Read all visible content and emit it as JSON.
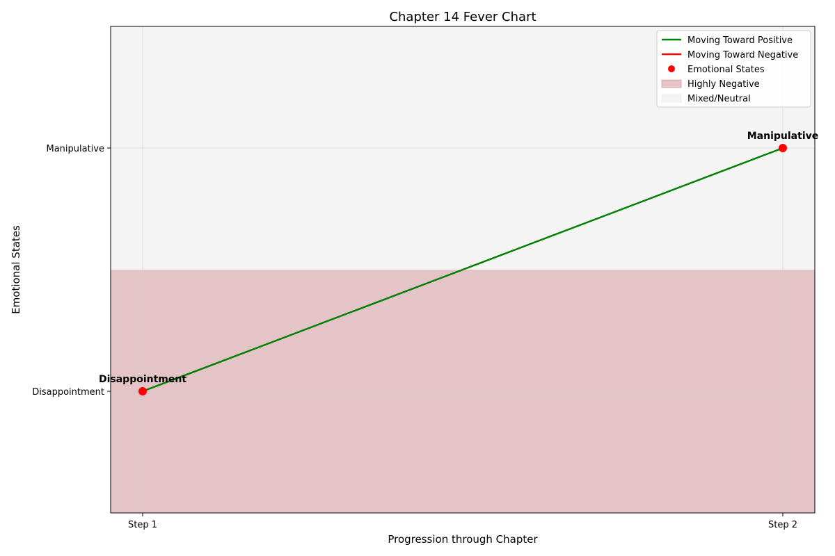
{
  "chart_data": {
    "type": "line",
    "title": "Chapter 14 Fever Chart",
    "xlabel": "Progression through Chapter",
    "ylabel": "Emotional States",
    "x_categories": [
      "Step 1",
      "Step 2"
    ],
    "y_categories": [
      "Disappointment",
      "Manipulative"
    ],
    "points": [
      {
        "x": "Step 1",
        "y": "Disappointment",
        "label": "Disappointment"
      },
      {
        "x": "Step 2",
        "y": "Manipulative",
        "label": "Manipulative"
      }
    ],
    "segments": [
      {
        "from": 0,
        "to": 1,
        "direction": "positive",
        "color": "#008000"
      }
    ],
    "regions": [
      {
        "name": "Highly Negative",
        "color": "#c98a8f"
      },
      {
        "name": "Mixed/Neutral",
        "color": "#e9e9e9"
      }
    ],
    "legend": {
      "placement": "top-right",
      "entries": [
        {
          "label": "Moving Toward Positive",
          "kind": "line",
          "color": "#008000"
        },
        {
          "label": "Moving Toward Negative",
          "kind": "line",
          "color": "#ff0000"
        },
        {
          "label": "Emotional States",
          "kind": "marker",
          "color": "#ff0000"
        },
        {
          "label": "Highly Negative",
          "kind": "patch",
          "color": "#c98a8f"
        },
        {
          "label": "Mixed/Neutral",
          "kind": "patch",
          "color": "#e9e9e9"
        }
      ]
    },
    "grid": true,
    "point_color": "#ff0000"
  }
}
